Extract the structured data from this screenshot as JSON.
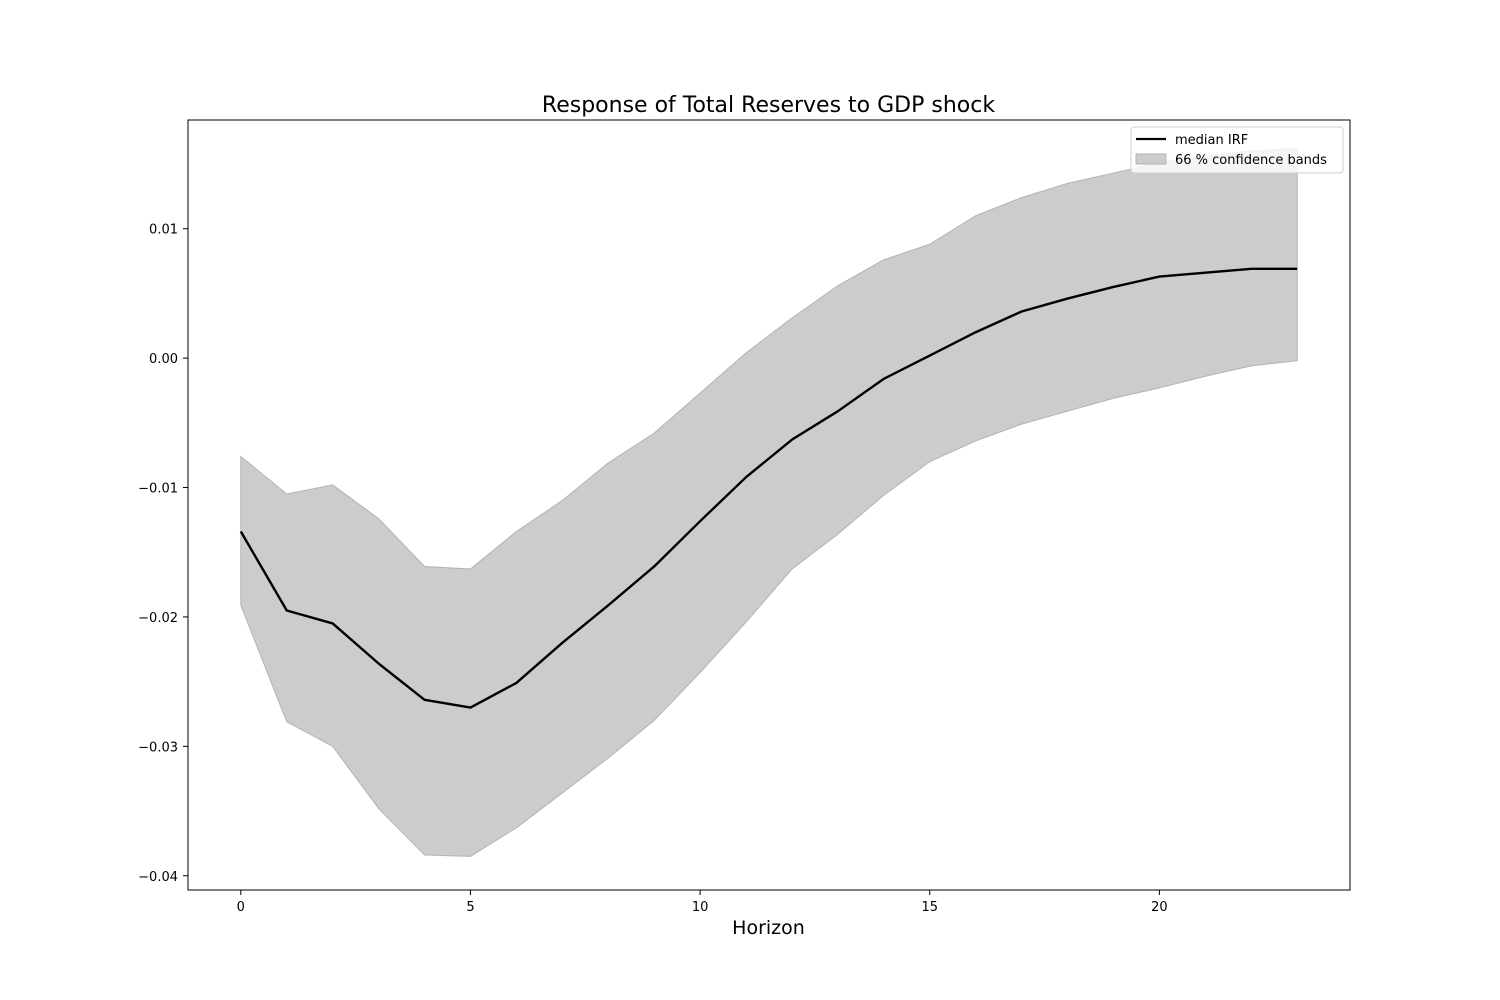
{
  "chart_data": {
    "type": "line",
    "title": "Response of Total Reserves to GDP shock",
    "xlabel": "Horizon",
    "ylabel": "",
    "xlim": [
      -1.15,
      24.15
    ],
    "ylim": [
      -0.0411,
      0.0184
    ],
    "xticks": [
      0,
      5,
      10,
      15,
      20
    ],
    "xtick_labels": [
      "0",
      "5",
      "10",
      "15",
      "20"
    ],
    "yticks": [
      -0.04,
      -0.03,
      -0.02,
      -0.01,
      0.0,
      0.01
    ],
    "ytick_labels": [
      "−0.04",
      "−0.03",
      "−0.02",
      "−0.01",
      "0.00",
      "0.01"
    ],
    "grid": false,
    "legend_position": "top-right",
    "x": [
      0,
      1,
      2,
      3,
      4,
      5,
      6,
      7,
      8,
      9,
      10,
      11,
      12,
      13,
      14,
      15,
      16,
      17,
      18,
      19,
      20,
      21,
      22,
      23
    ],
    "series": [
      {
        "name": "median IRF",
        "kind": "line",
        "color": "#000000",
        "values": [
          -0.0134,
          -0.0195,
          -0.0205,
          -0.0236,
          -0.0264,
          -0.027,
          -0.0251,
          -0.022,
          -0.0191,
          -0.0161,
          -0.0126,
          -0.0092,
          -0.0063,
          -0.0041,
          -0.0016,
          0.0002,
          0.002,
          0.0036,
          0.0046,
          0.0055,
          0.0063,
          0.0066,
          0.0069,
          0.0069
        ]
      },
      {
        "name": "66 % confidence bands",
        "kind": "band",
        "color": "#cccccc",
        "lower": [
          -0.0191,
          -0.0281,
          -0.03,
          -0.0348,
          -0.0384,
          -0.0385,
          -0.0363,
          -0.0336,
          -0.0309,
          -0.028,
          -0.0243,
          -0.0204,
          -0.0163,
          -0.0136,
          -0.0106,
          -0.008,
          -0.0064,
          -0.0051,
          -0.0041,
          -0.0031,
          -0.0023,
          -0.0014,
          -0.0006,
          -0.0002
        ],
        "upper": [
          -0.0076,
          -0.0105,
          -0.0098,
          -0.0124,
          -0.0161,
          -0.0163,
          -0.0134,
          -0.011,
          -0.0081,
          -0.0058,
          -0.0027,
          0.0004,
          0.0031,
          0.0056,
          0.0076,
          0.0088,
          0.011,
          0.0124,
          0.0135,
          0.0143,
          0.0151,
          0.0156,
          0.016,
          0.0162
        ]
      }
    ]
  }
}
